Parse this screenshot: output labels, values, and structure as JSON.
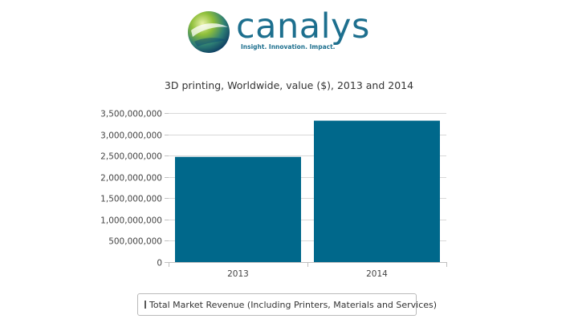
{
  "logo": {
    "wordmark": "canalys",
    "tagline": "Insight. Innovation. Impact."
  },
  "chart_data": {
    "type": "bar",
    "title": "3D printing, Worldwide, value ($), 2013 and 2014",
    "categories": [
      "2013",
      "2014"
    ],
    "series": [
      {
        "name": "Total Market Revenue (Including Printers, Materials and Services)",
        "values": [
          2470000000,
          3320000000
        ],
        "color": "#00688b"
      }
    ],
    "y_ticks": [
      0,
      500000000,
      1000000000,
      1500000000,
      2000000000,
      2500000000,
      3000000000,
      3500000000
    ],
    "y_tick_labels": [
      "0",
      "500,000,000",
      "1,000,000,000",
      "1,500,000,000",
      "2,000,000,000",
      "2,500,000,000",
      "3,000,000,000",
      "3,500,000,000"
    ],
    "ylim": [
      0,
      3500000000
    ],
    "xlabel": "",
    "ylabel": "",
    "grid": true,
    "legend_position": "bottom-center"
  }
}
